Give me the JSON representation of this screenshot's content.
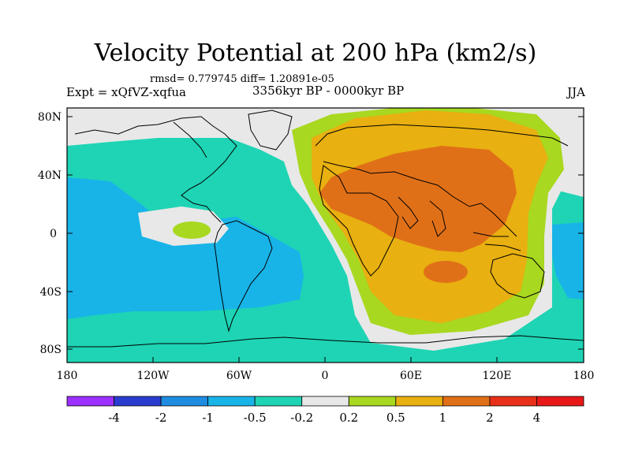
{
  "title": "Velocity Potential at 200 hPa (km2/s)",
  "stats": "rmsd= 0.779745 diff= 1.20891e-05",
  "experiment": "Expt = xQfVZ-xqfua",
  "period": "3356kyr BP - 0000kyr BP",
  "season": "JJA",
  "y_ticks": [
    "80N",
    "40N",
    "0",
    "40S",
    "80S"
  ],
  "x_ticks": [
    "180",
    "120W",
    "60W",
    "0",
    "60E",
    "120E",
    "180"
  ],
  "colorbar": {
    "labels": [
      "-4",
      "-2",
      "-1",
      "-0.5",
      "-0.2",
      "0.2",
      "0.5",
      "1",
      "2",
      "4"
    ],
    "colors": [
      "#9b30ff",
      "#2a3ccf",
      "#1e8ce0",
      "#18b4e8",
      "#1ed4b4",
      "#e8e8e8",
      "#a8d820",
      "#e8b010",
      "#e07018",
      "#e83018",
      "#e81818"
    ]
  },
  "field_colors": {
    "pos_020": "#a8d820",
    "pos_050": "#e8b010",
    "pos_1": "#e07018",
    "neutral": "#e8e8e8",
    "neg_020": "#1ed4b4",
    "neg_050": "#18b4e8"
  }
}
